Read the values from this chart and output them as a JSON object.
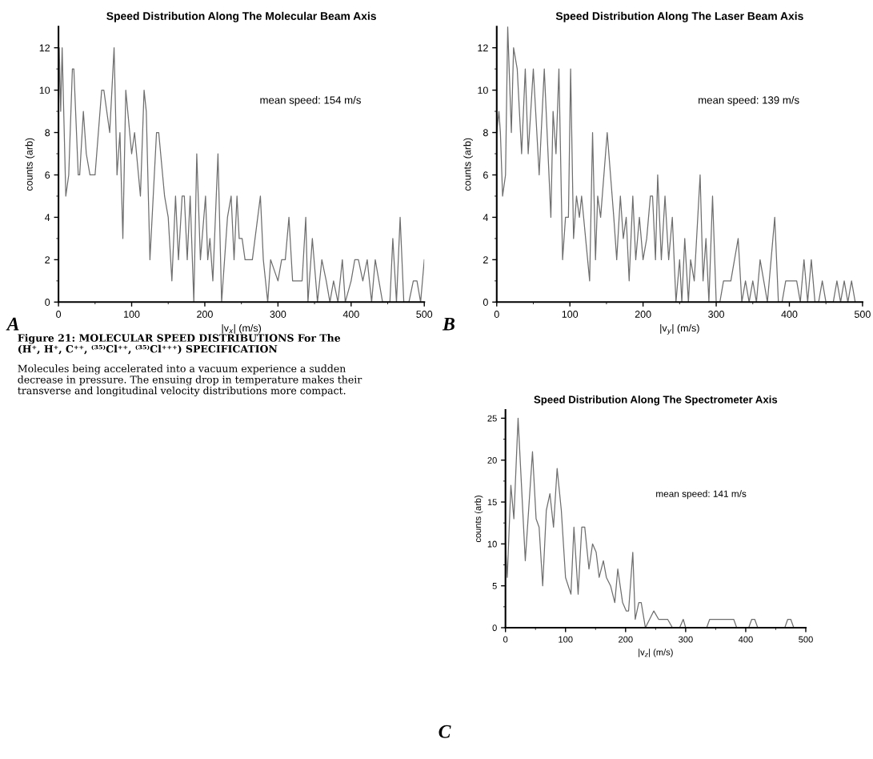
{
  "chart_data": [
    {
      "type": "line",
      "title": "Speed Distribution Along The Molecular Beam Axis",
      "xlabel": "|v$_{x}$| (m/s)",
      "ylabel": "counts (arb)",
      "annotations": [
        "mean speed: 154 m/s",
        "A"
      ],
      "xlim": [
        0,
        500
      ],
      "ylim": [
        0,
        13
      ],
      "xticks": [
        0,
        100,
        200,
        300,
        400,
        500
      ],
      "yticks": [
        0,
        2,
        4,
        6,
        8,
        10,
        12
      ],
      "grid": false,
      "legend": false,
      "series": [
        {
          "color": "#6e6e6e",
          "x": [
            0,
            1,
            3,
            5,
            10,
            14,
            19,
            21,
            27,
            29,
            34,
            38,
            43,
            50,
            59,
            62,
            70,
            76,
            80,
            84,
            88,
            92,
            100,
            104,
            112,
            117,
            120,
            125,
            134,
            137,
            145,
            150,
            155,
            160,
            164,
            169,
            172,
            176,
            180,
            185,
            189,
            194,
            201,
            204,
            207,
            211,
            218,
            223,
            231,
            236,
            240,
            244,
            247,
            251,
            255,
            265,
            276,
            280,
            286,
            290,
            300,
            305,
            310,
            315,
            320,
            323,
            333,
            338,
            341,
            347,
            354,
            360,
            366,
            371,
            376,
            382,
            388,
            392,
            400,
            405,
            410,
            416,
            422,
            428,
            433,
            438,
            443,
            450,
            453,
            457,
            462,
            467,
            472,
            479,
            485,
            490,
            495,
            500
          ],
          "values": [
            8,
            12,
            9,
            12,
            5,
            6,
            11,
            11,
            6,
            6,
            9,
            7,
            6,
            6,
            10,
            10,
            8,
            12,
            6,
            8,
            3,
            10,
            7,
            8,
            5,
            10,
            9,
            2,
            8,
            8,
            5,
            4,
            1,
            5,
            2,
            5,
            5,
            2,
            5,
            0,
            7,
            2,
            5,
            2,
            3,
            1,
            7,
            0,
            4,
            5,
            2,
            5,
            3,
            3,
            2,
            2,
            5,
            2,
            0,
            2,
            1,
            2,
            2,
            4,
            1,
            1,
            1,
            4,
            0,
            3,
            0,
            2,
            1,
            0,
            1,
            0,
            2,
            0,
            1,
            2,
            2,
            1,
            2,
            0,
            2,
            1,
            0,
            0,
            0,
            3,
            0,
            4,
            0,
            0,
            1,
            1,
            0,
            2
          ]
        }
      ]
    },
    {
      "type": "line",
      "title": "Speed Distribution Along The Laser Beam Axis",
      "xlabel": "|v$_{y}$| (m/s)",
      "ylabel": "counts (arb)",
      "annotations": [
        "mean speed: 139 m/s",
        "B"
      ],
      "xlim": [
        0,
        500
      ],
      "ylim": [
        0,
        13
      ],
      "xticks": [
        0,
        100,
        200,
        300,
        400,
        500
      ],
      "yticks": [
        0,
        2,
        4,
        6,
        8,
        10,
        12
      ],
      "grid": false,
      "legend": false,
      "series": [
        {
          "color": "#6e6e6e",
          "x": [
            0,
            3,
            5,
            8,
            12,
            15,
            20,
            23,
            28,
            34,
            39,
            43,
            50,
            58,
            65,
            74,
            77,
            81,
            85,
            90,
            94,
            98,
            101,
            105,
            109,
            113,
            116,
            127,
            131,
            135,
            138,
            142,
            151,
            160,
            164,
            169,
            173,
            177,
            181,
            186,
            190,
            195,
            200,
            205,
            210,
            213,
            217,
            220,
            225,
            230,
            235,
            240,
            245,
            250,
            253,
            257,
            262,
            265,
            270,
            278,
            282,
            286,
            290,
            295,
            300,
            305,
            310,
            320,
            330,
            335,
            340,
            345,
            350,
            355,
            360,
            365,
            370,
            375,
            380,
            385,
            390,
            395,
            410,
            415,
            420,
            425,
            430,
            435,
            440,
            445,
            450,
            460,
            465,
            470,
            475,
            480,
            485,
            490
          ],
          "values": [
            8,
            9,
            8,
            5,
            6,
            13,
            8,
            12,
            11,
            7,
            11,
            7,
            11,
            6,
            11,
            4,
            9,
            7,
            11,
            2,
            4,
            4,
            11,
            3,
            5,
            4,
            5,
            1,
            8,
            2,
            5,
            4,
            8,
            4,
            2,
            5,
            3,
            4,
            1,
            5,
            2,
            4,
            2,
            3,
            5,
            5,
            2,
            6,
            2,
            5,
            2,
            4,
            0,
            2,
            0,
            3,
            0,
            2,
            1,
            6,
            1,
            3,
            0,
            5,
            0,
            0,
            1,
            1,
            3,
            0,
            1,
            0,
            1,
            0,
            2,
            1,
            0,
            2,
            4,
            0,
            0,
            1,
            1,
            0,
            2,
            0,
            2,
            0,
            0,
            1,
            0,
            0,
            1,
            0,
            1,
            0,
            1,
            0
          ]
        }
      ]
    },
    {
      "type": "other",
      "annotations": [
        "Figure 21: MOLECULAR SPEED DISTRIBUTIONS For The\n(H⁺, H⁺, C⁺⁺, ⁽³⁵⁾Cl⁺⁺, ⁽³⁵⁾Cl⁺⁺⁺) SPECIFICATION",
        "Molecules being accelerated into a vacuum experience a sudden\ndecrease in pressure. The ensuing drop in temperature makes their\ntransverse and longitudinal velocity distributions more compact."
      ]
    },
    {
      "type": "line",
      "title": "Speed Distribution Along The Spectrometer Axis",
      "xlabel": "|v$_{z}$| (m/s)",
      "ylabel": "counts (arb)",
      "annotations": [
        "mean speed: 141 m/s",
        "C"
      ],
      "xlim": [
        0,
        500
      ],
      "ylim": [
        0,
        26
      ],
      "xticks": [
        0,
        100,
        200,
        300,
        400,
        500
      ],
      "yticks": [
        0,
        5,
        10,
        15,
        20,
        25
      ],
      "grid": false,
      "legend": false,
      "series": [
        {
          "color": "#6e6e6e",
          "x": [
            0,
            3,
            9,
            14,
            21,
            33,
            45,
            51,
            56,
            62,
            68,
            74,
            80,
            86,
            93,
            100,
            109,
            114,
            121,
            127,
            132,
            139,
            145,
            151,
            156,
            163,
            168,
            175,
            182,
            187,
            195,
            201,
            205,
            212,
            216,
            222,
            226,
            233,
            240,
            247,
            255,
            270,
            278,
            290,
            296,
            300,
            335,
            340,
            380,
            385,
            405,
            410,
            415,
            420,
            465,
            470,
            475,
            480
          ],
          "values": [
            10,
            6,
            17,
            13,
            25,
            8,
            21,
            13,
            12,
            5,
            14,
            16,
            12,
            19,
            14,
            6,
            4,
            12,
            4,
            12,
            12,
            7,
            10,
            9,
            6,
            8,
            6,
            5,
            3,
            7,
            3,
            2,
            2,
            9,
            1,
            3,
            3,
            0,
            1,
            2,
            1,
            1,
            0,
            0,
            1,
            0,
            0,
            1,
            1,
            0,
            0,
            1,
            1,
            0,
            0,
            1,
            1,
            0
          ]
        }
      ]
    }
  ]
}
